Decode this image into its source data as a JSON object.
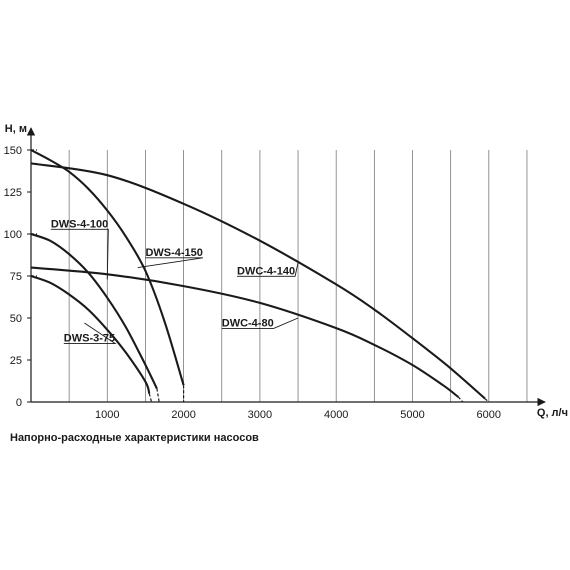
{
  "caption": "Напорно-расходные характеристики насосов",
  "chart_data": {
    "type": "line",
    "title": "",
    "xlabel": "Q, л/ч",
    "ylabel": "H, м",
    "xlim": [
      0,
      6500
    ],
    "ylim": [
      0,
      160
    ],
    "x_ticks": [
      1000,
      2000,
      3000,
      4000,
      5000,
      6000
    ],
    "x_tick_labels": [
      "1000",
      "2000",
      "3000",
      "4000",
      "5000",
      "6000"
    ],
    "y_ticks": [
      0,
      25,
      50,
      75,
      100,
      125,
      150
    ],
    "y_tick_labels": [
      "0",
      "25",
      "50",
      "75",
      "100",
      "125",
      "150"
    ],
    "grid": "vertical",
    "series": [
      {
        "name": "DWS-4-150",
        "x": [
          0,
          250,
          500,
          750,
          1000,
          1250,
          1500,
          1750,
          2000
        ],
        "y": [
          150,
          144,
          137,
          127,
          114,
          98,
          78,
          48,
          10
        ],
        "dashed_x": [
          2000,
          2000
        ],
        "dashed_y": [
          10,
          0
        ]
      },
      {
        "name": "DWS-4-100",
        "x": [
          0,
          250,
          500,
          750,
          1000,
          1250,
          1500,
          1650
        ],
        "y": [
          100,
          96,
          88,
          77,
          62,
          44,
          22,
          8
        ],
        "dashed_x": [
          1650,
          1680
        ],
        "dashed_y": [
          8,
          0
        ]
      },
      {
        "name": "DWS-3-75",
        "x": [
          0,
          250,
          500,
          750,
          1000,
          1250,
          1500,
          1550
        ],
        "y": [
          75,
          71,
          64,
          55,
          43,
          29,
          12,
          5
        ],
        "dashed_x": [
          1550,
          1580
        ],
        "dashed_y": [
          5,
          0
        ]
      },
      {
        "name": "DWC-4-140",
        "x": [
          0,
          1000,
          2000,
          3000,
          4000,
          4500,
          5000,
          5500,
          5950
        ],
        "y": [
          142,
          135,
          118,
          96,
          70,
          55,
          38,
          20,
          2
        ],
        "dashed_x": [
          5950,
          6000
        ],
        "dashed_y": [
          2,
          0
        ]
      },
      {
        "name": "DWC-4-80",
        "x": [
          0,
          1000,
          2000,
          3000,
          4000,
          4500,
          5000,
          5400,
          5600
        ],
        "y": [
          80,
          76,
          69,
          59,
          44,
          34,
          22,
          10,
          3
        ],
        "dashed_x": [
          5600,
          5660
        ],
        "dashed_y": [
          3,
          0
        ]
      }
    ],
    "labels": [
      {
        "text": "DWS-4-100",
        "series": "DWS-4-100",
        "x": 260,
        "y": 104,
        "at_x": 1000,
        "at_y": 73
      },
      {
        "text": "DWS-4-150",
        "series": "DWS-4-150",
        "x": 1500,
        "y": 87,
        "at_x": 1400,
        "at_y": 80
      },
      {
        "text": "DWS-3-75",
        "series": "DWS-3-75",
        "x": 430,
        "y": 36,
        "at_x": 700,
        "at_y": 47
      },
      {
        "text": "DWC-4-140",
        "series": "DWC-4-140",
        "x": 2700,
        "y": 76,
        "at_x": 3500,
        "at_y": 83
      },
      {
        "text": "DWC-4-80",
        "series": "DWC-4-80",
        "x": 2500,
        "y": 45,
        "at_x": 3500,
        "at_y": 50
      }
    ],
    "legend": "none"
  }
}
